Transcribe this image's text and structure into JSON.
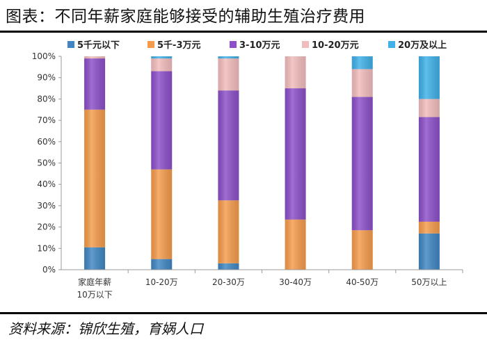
{
  "title": "图表：不同年薪家庭能够接受的辅助生殖治疗费用",
  "source": "资料来源：锦欣生殖，育娲人口",
  "chart_data": {
    "type": "bar",
    "stacked": true,
    "categories": [
      "家庭年薪\n10万以下",
      "10-20万",
      "20-30万",
      "30-40万",
      "40-50万",
      "50万以上"
    ],
    "ylim": [
      0,
      100
    ],
    "yticks": [
      "0%",
      "10%",
      "20%",
      "30%",
      "40%",
      "50%",
      "60%",
      "70%",
      "80%",
      "90%",
      "100%"
    ],
    "legend_position": "top",
    "series": [
      {
        "name": "5千元以下",
        "color": "#3f86c2",
        "values": [
          10.5,
          5,
          3,
          0,
          0,
          17
        ]
      },
      {
        "name": "5千-3万元",
        "color": "#f59b4b",
        "values": [
          64.5,
          42,
          29.5,
          23.5,
          18.5,
          5.5
        ]
      },
      {
        "name": "3-10万元",
        "color": "#8b4fc8",
        "values": [
          24,
          46,
          51.5,
          61.5,
          62.5,
          49
        ]
      },
      {
        "name": "10-20万元",
        "color": "#f2bcbc",
        "values": [
          1,
          6,
          15,
          15,
          13,
          8.5
        ]
      },
      {
        "name": "20万及以上",
        "color": "#3fb0e8",
        "values": [
          0,
          1,
          1,
          0,
          6,
          20
        ]
      }
    ]
  }
}
